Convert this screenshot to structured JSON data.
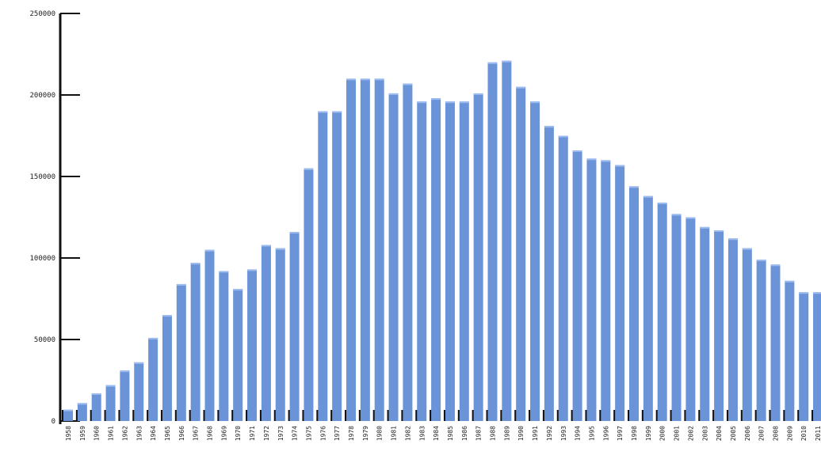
{
  "chart_data": {
    "type": "bar",
    "title": "",
    "xlabel": "",
    "ylabel": "",
    "ylim": [
      0,
      250000
    ],
    "y_ticks": [
      "0",
      "50000",
      "100000",
      "150000",
      "200000",
      "250000"
    ],
    "y_tick_values": [
      0,
      50000,
      100000,
      150000,
      200000,
      250000
    ],
    "grid": false,
    "legend": "none",
    "bar_color": "#6b94d8",
    "bar_highlight_color": "#9dbbef",
    "axis_color": "#111111",
    "categories": [
      "1958",
      "1959",
      "1960",
      "1961",
      "1962",
      "1963",
      "1964",
      "1965",
      "1966",
      "1967",
      "1968",
      "1969",
      "1970",
      "1971",
      "1972",
      "1973",
      "1974",
      "1975",
      "1976",
      "1977",
      "1978",
      "1979",
      "1980",
      "1981",
      "1982",
      "1983",
      "1984",
      "1985",
      "1986",
      "1987",
      "1988",
      "1989",
      "1990",
      "1991",
      "1992",
      "1993",
      "1994",
      "1995",
      "1996",
      "1997",
      "1998",
      "1999",
      "2000",
      "2001",
      "2002",
      "2003",
      "2004",
      "2005",
      "2006",
      "2007",
      "2008",
      "2009",
      "2010",
      "2011"
    ],
    "series": [
      {
        "values": [
          7000,
          11000,
          17000,
          22000,
          31000,
          36000,
          51000,
          65000,
          84000,
          97000,
          105000,
          92000,
          81000,
          93000,
          108000,
          106000,
          116000,
          155000,
          190000,
          190000,
          210000,
          210000,
          210000,
          201000,
          207000,
          196000,
          198000,
          196000,
          196000,
          201000,
          220000,
          221000,
          205000,
          196000,
          181000,
          175000,
          166000,
          161000,
          160000,
          157000,
          144000,
          138000,
          134000,
          127000,
          125000,
          119000,
          117000,
          112000,
          106000,
          99000,
          96000,
          86000,
          79000,
          79000
        ]
      }
    ]
  }
}
